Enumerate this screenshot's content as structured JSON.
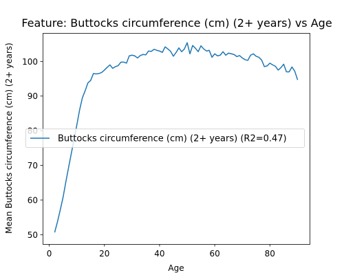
{
  "chart_data": {
    "type": "line",
    "title": "Feature: Buttocks circumference (cm) (2+ years) vs Age",
    "xlabel": "Age",
    "ylabel": "Mean Buttocks circumference (cm) (2+ years)",
    "xlim": [
      -2.4,
      94.4
    ],
    "ylim": [
      47.3,
      108.2
    ],
    "xticks": [
      0,
      20,
      40,
      60,
      80
    ],
    "yticks": [
      50,
      60,
      70,
      80,
      90,
      100
    ],
    "grid": false,
    "legend_position": "center-right",
    "series": [
      {
        "name": "Buttocks circumference (cm) (2+ years) (R2=0.47)",
        "color": "#1f77b4",
        "x": [
          2,
          3,
          4,
          5,
          6,
          7,
          8,
          9,
          10,
          11,
          12,
          13,
          14,
          15,
          16,
          17,
          18,
          19,
          20,
          21,
          22,
          23,
          24,
          25,
          26,
          27,
          28,
          29,
          30,
          31,
          32,
          33,
          34,
          35,
          36,
          37,
          38,
          39,
          40,
          41,
          42,
          43,
          44,
          45,
          46,
          47,
          48,
          49,
          50,
          51,
          52,
          53,
          54,
          55,
          56,
          57,
          58,
          59,
          60,
          61,
          62,
          63,
          64,
          65,
          66,
          67,
          68,
          69,
          70,
          71,
          72,
          73,
          74,
          75,
          76,
          77,
          78,
          79,
          80,
          81,
          82,
          83,
          84,
          85,
          86,
          87,
          88,
          89,
          90
        ],
        "y": [
          50.8,
          53.8,
          57.2,
          60.8,
          65.2,
          69.4,
          73.5,
          77.5,
          81.7,
          86.0,
          89.5,
          91.5,
          93.8,
          94.5,
          96.5,
          96.4,
          96.5,
          96.8,
          97.5,
          98.3,
          99.0,
          98.0,
          98.5,
          98.8,
          99.8,
          99.8,
          99.5,
          101.6,
          101.8,
          101.6,
          101.0,
          101.7,
          102.0,
          101.9,
          103.0,
          102.9,
          103.5,
          103.2,
          103.0,
          102.6,
          104.2,
          103.6,
          102.9,
          101.5,
          102.6,
          103.9,
          102.8,
          103.6,
          105.4,
          102.2,
          104.6,
          103.8,
          102.8,
          104.5,
          103.6,
          103.0,
          103.2,
          101.2,
          102.2,
          101.6,
          101.8,
          102.8,
          101.8,
          102.4,
          102.2,
          102.0,
          101.4,
          101.7,
          101.0,
          100.5,
          100.3,
          101.8,
          102.2,
          101.5,
          101.2,
          100.4,
          98.5,
          98.7,
          99.5,
          99.0,
          98.6,
          97.5,
          98.2,
          99.2,
          97.0,
          97.0,
          98.4,
          97.2,
          94.8
        ]
      }
    ]
  }
}
